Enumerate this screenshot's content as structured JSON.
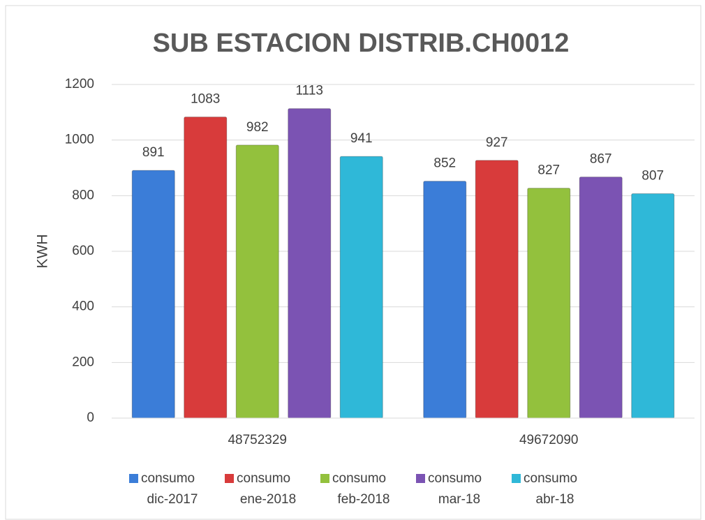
{
  "chart_data": {
    "type": "bar",
    "title": "SUB ESTACION DISTRIB.CH0012",
    "y_label": "KWH",
    "categories": [
      "48752329",
      "49672090"
    ],
    "series": [
      {
        "name": "consumo dic-2017",
        "color": "#3b7dd8",
        "values": [
          891,
          852
        ]
      },
      {
        "name": "consumo ene-2018",
        "color": "#d83b3b",
        "values": [
          1083,
          927
        ]
      },
      {
        "name": "consumo feb-2018",
        "color": "#93c13d",
        "values": [
          982,
          827
        ]
      },
      {
        "name": "consumo mar-18",
        "color": "#7b53b3",
        "values": [
          1113,
          867
        ]
      },
      {
        "name": "consumo abr-18",
        "color": "#2fb8d8",
        "values": [
          941,
          807
        ]
      }
    ],
    "ylim": [
      0,
      1200
    ],
    "yticks": [
      0,
      200,
      400,
      600,
      800,
      1000,
      1200
    ],
    "grid": true,
    "legend": "bottom"
  }
}
